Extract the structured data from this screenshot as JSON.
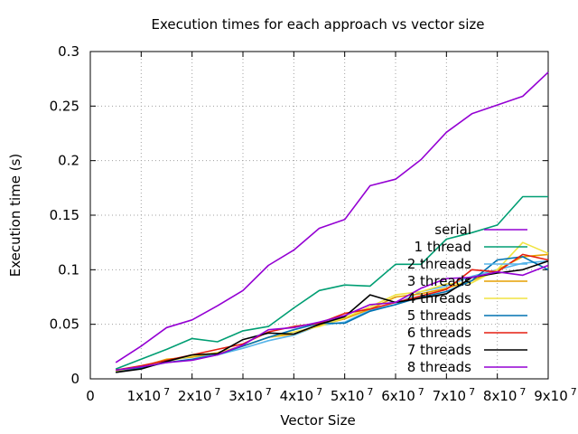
{
  "chart_data": {
    "type": "line",
    "title": "Execution times for each approach vs vector size",
    "xlabel": "Vector Size",
    "ylabel": "Execution time (s)",
    "xlim": [
      0,
      90000000
    ],
    "ylim": [
      0,
      0.3
    ],
    "grid": true,
    "legend_position": "right",
    "x_ticks": [
      {
        "value": 0,
        "label": "0",
        "exp": ""
      },
      {
        "value": 10000000,
        "label": "1x10",
        "exp": "7"
      },
      {
        "value": 20000000,
        "label": "2x10",
        "exp": "7"
      },
      {
        "value": 30000000,
        "label": "3x10",
        "exp": "7"
      },
      {
        "value": 40000000,
        "label": "4x10",
        "exp": "7"
      },
      {
        "value": 50000000,
        "label": "5x10",
        "exp": "7"
      },
      {
        "value": 60000000,
        "label": "6x10",
        "exp": "7"
      },
      {
        "value": 70000000,
        "label": "7x10",
        "exp": "7"
      },
      {
        "value": 80000000,
        "label": "8x10",
        "exp": "7"
      },
      {
        "value": 90000000,
        "label": "9x10",
        "exp": "7"
      }
    ],
    "y_ticks": [
      {
        "value": 0,
        "label": "0"
      },
      {
        "value": 0.05,
        "label": "0.05"
      },
      {
        "value": 0.1,
        "label": "0.1"
      },
      {
        "value": 0.15,
        "label": "0.15"
      },
      {
        "value": 0.2,
        "label": "0.2"
      },
      {
        "value": 0.25,
        "label": "0.25"
      },
      {
        "value": 0.3,
        "label": "0.3"
      }
    ],
    "x": [
      5000000,
      10000000,
      15000000,
      20000000,
      25000000,
      30000000,
      35000000,
      40000000,
      45000000,
      50000000,
      55000000,
      60000000,
      65000000,
      70000000,
      75000000,
      80000000,
      85000000,
      90000000
    ],
    "series": [
      {
        "name": "serial",
        "color": "#9400d3",
        "values": [
          0.015,
          0.03,
          0.047,
          0.054,
          0.067,
          0.081,
          0.104,
          0.118,
          0.138,
          0.146,
          0.177,
          0.183,
          0.201,
          0.226,
          0.243,
          0.251,
          0.259,
          0.281
        ]
      },
      {
        "name": "1 thread",
        "color": "#009e73",
        "values": [
          0.009,
          0.018,
          0.027,
          0.037,
          0.034,
          0.044,
          0.048,
          0.065,
          0.081,
          0.086,
          0.085,
          0.105,
          0.105,
          0.128,
          0.134,
          0.141,
          0.167,
          0.167
        ]
      },
      {
        "name": "2 threads",
        "color": "#56b4e9",
        "values": [
          0.007,
          0.01,
          0.017,
          0.02,
          0.022,
          0.028,
          0.035,
          0.04,
          0.049,
          0.052,
          0.063,
          0.068,
          0.08,
          0.085,
          0.094,
          0.1,
          0.106,
          0.108
        ]
      },
      {
        "name": "3 threads",
        "color": "#e69f00",
        "values": [
          0.007,
          0.011,
          0.018,
          0.02,
          0.024,
          0.03,
          0.038,
          0.041,
          0.049,
          0.055,
          0.064,
          0.075,
          0.078,
          0.083,
          0.09,
          0.1,
          0.112,
          0.114
        ]
      },
      {
        "name": "4 threads",
        "color": "#f0e442",
        "values": [
          0.007,
          0.012,
          0.016,
          0.021,
          0.024,
          0.03,
          0.038,
          0.043,
          0.048,
          0.056,
          0.066,
          0.077,
          0.08,
          0.087,
          0.088,
          0.1,
          0.125,
          0.115
        ]
      },
      {
        "name": "5 threads",
        "color": "#0072b2",
        "values": [
          0.006,
          0.01,
          0.015,
          0.018,
          0.022,
          0.03,
          0.038,
          0.045,
          0.051,
          0.051,
          0.062,
          0.068,
          0.075,
          0.08,
          0.09,
          0.109,
          0.112,
          0.1
        ]
      },
      {
        "name": "6 threads",
        "color": "#e51e10",
        "values": [
          0.008,
          0.012,
          0.017,
          0.022,
          0.027,
          0.032,
          0.043,
          0.048,
          0.051,
          0.06,
          0.064,
          0.07,
          0.076,
          0.082,
          0.1,
          0.098,
          0.114,
          0.109
        ]
      },
      {
        "name": "7 threads",
        "color": "#000000",
        "values": [
          0.006,
          0.009,
          0.016,
          0.022,
          0.023,
          0.036,
          0.042,
          0.041,
          0.05,
          0.057,
          0.077,
          0.07,
          0.074,
          0.078,
          0.093,
          0.097,
          0.1,
          0.108
        ]
      },
      {
        "name": "8 threads",
        "color": "#9400d3",
        "values": [
          0.008,
          0.011,
          0.015,
          0.017,
          0.022,
          0.031,
          0.045,
          0.047,
          0.052,
          0.058,
          0.068,
          0.07,
          0.083,
          0.092,
          0.093,
          0.098,
          0.095,
          0.104
        ]
      }
    ]
  }
}
